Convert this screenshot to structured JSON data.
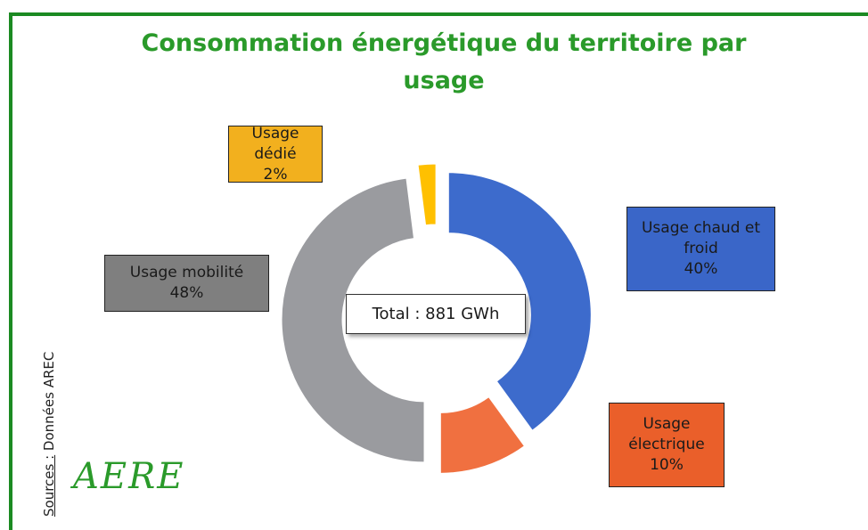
{
  "chart_data": {
    "type": "donut",
    "title": "Consommation énergétique du territoire par usage",
    "categories": [
      "Usage chaud et froid",
      "Usage électrique",
      "Usage mobilité",
      "Usage dédié"
    ],
    "values": [
      40,
      10,
      48,
      2
    ],
    "value_labels": [
      "40%",
      "10%",
      "48%",
      "2%"
    ],
    "colors": [
      "#3d6bcc",
      "#f07040",
      "#9a9b9f",
      "#ffc000"
    ],
    "label_colors": [
      "#3a66c8",
      "#ea5f2a",
      "#7f7f7f",
      "#f2b01e"
    ],
    "center_label": "Total : 881 GWh",
    "source_label": "Sources :",
    "source_text": "Données AREC",
    "logo": "AERE"
  }
}
